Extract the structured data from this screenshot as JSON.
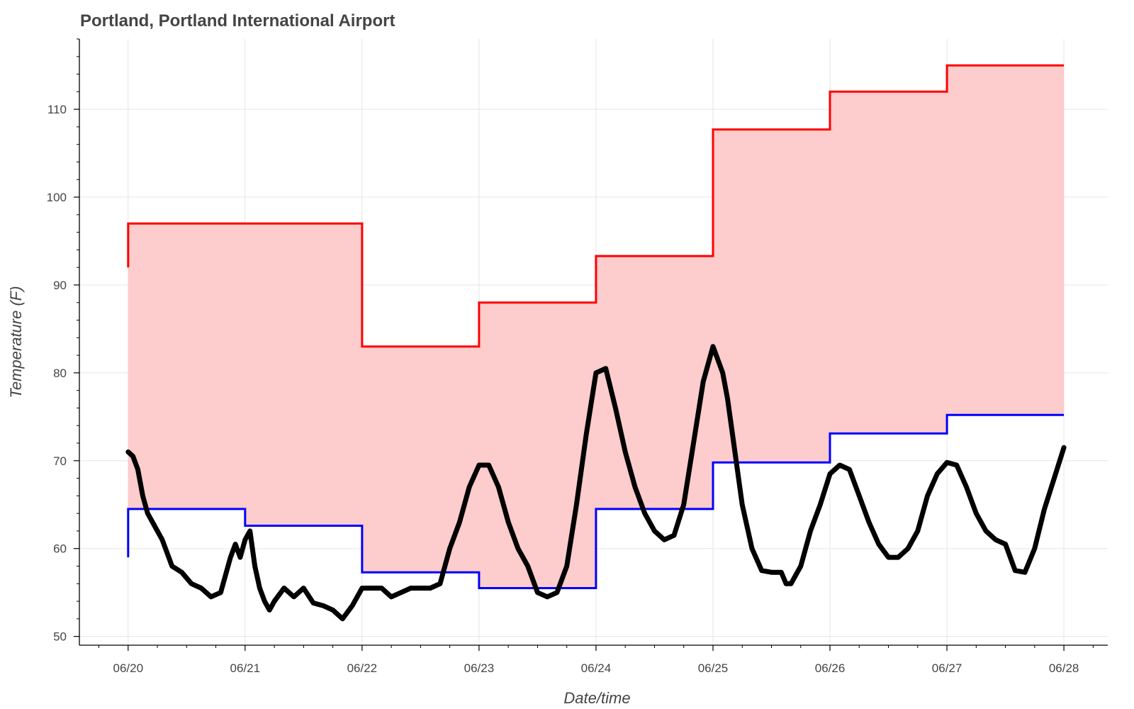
{
  "chart_data": {
    "type": "line",
    "title": "Portland, Portland International Airport",
    "xlabel": "Date/time",
    "ylabel": "Temperature (F)",
    "x_ticks": [
      "06/20",
      "06/21",
      "06/22",
      "06/23",
      "06/24",
      "06/25",
      "06/26",
      "06/27",
      "06/28"
    ],
    "y_ticks": [
      50,
      60,
      70,
      80,
      90,
      100,
      110
    ],
    "ylim": [
      49,
      118
    ],
    "xlim": [
      "06/19 14:00",
      "06/28 09:00"
    ],
    "grid": true,
    "colors": {
      "record_high": "#ff0000",
      "record_low": "#0000ff",
      "band_fill": "#fdcccc",
      "observed": "#000000",
      "grid": "#e5e5e5"
    },
    "series": [
      {
        "kind": "step",
        "color": "#ff0000",
        "points": [
          [
            "06/20 00:00",
            92
          ],
          [
            "06/20 00:00",
            97
          ],
          [
            "06/22 00:00",
            97
          ],
          [
            "06/22 00:00",
            83
          ],
          [
            "06/23 00:00",
            83
          ],
          [
            "06/23 00:00",
            88
          ],
          [
            "06/24 00:00",
            88
          ],
          [
            "06/24 00:00",
            93.3
          ],
          [
            "06/25 00:00",
            93.3
          ],
          [
            "06/25 00:00",
            107.7
          ],
          [
            "06/26 00:00",
            107.7
          ],
          [
            "06/26 00:00",
            112
          ],
          [
            "06/27 00:00",
            112
          ],
          [
            "06/27 00:00",
            115
          ],
          [
            "06/28 00:00",
            115
          ]
        ]
      },
      {
        "kind": "step",
        "color": "#0000ff",
        "points": [
          [
            "06/20 00:00",
            59
          ],
          [
            "06/20 00:00",
            64.5
          ],
          [
            "06/21 00:00",
            64.5
          ],
          [
            "06/21 00:00",
            62.6
          ],
          [
            "06/22 00:00",
            62.6
          ],
          [
            "06/22 00:00",
            57.3
          ],
          [
            "06/23 00:00",
            57.3
          ],
          [
            "06/23 00:00",
            55.5
          ],
          [
            "06/24 00:00",
            55.5
          ],
          [
            "06/24 00:00",
            64.5
          ],
          [
            "06/25 00:00",
            64.5
          ],
          [
            "06/25 00:00",
            69.8
          ],
          [
            "06/26 00:00",
            69.8
          ],
          [
            "06/26 00:00",
            73.1
          ],
          [
            "06/27 00:00",
            73.1
          ],
          [
            "06/27 00:00",
            75.2
          ],
          [
            "06/28 00:00",
            75.2
          ]
        ]
      },
      {
        "kind": "line",
        "color": "#000000",
        "points": [
          [
            "06/20 00:00",
            71
          ],
          [
            "06/20 01:00",
            70.5
          ],
          [
            "06/20 02:00",
            69
          ],
          [
            "06/20 03:00",
            66
          ],
          [
            "06/20 04:00",
            64
          ],
          [
            "06/20 05:00",
            63
          ],
          [
            "06/20 07:00",
            61
          ],
          [
            "06/20 09:00",
            58
          ],
          [
            "06/20 11:00",
            57.3
          ],
          [
            "06/20 13:00",
            56
          ],
          [
            "06/20 15:00",
            55.5
          ],
          [
            "06/20 17:00",
            54.5
          ],
          [
            "06/20 19:00",
            55
          ],
          [
            "06/20 21:00",
            59
          ],
          [
            "06/20 22:00",
            60.5
          ],
          [
            "06/20 23:00",
            59
          ],
          [
            "06/21 00:00",
            61
          ],
          [
            "06/21 01:00",
            62
          ],
          [
            "06/21 02:00",
            58
          ],
          [
            "06/21 03:00",
            55.5
          ],
          [
            "06/21 04:00",
            54
          ],
          [
            "06/21 05:00",
            53
          ],
          [
            "06/21 06:00",
            54
          ],
          [
            "06/21 08:00",
            55.5
          ],
          [
            "06/21 10:00",
            54.5
          ],
          [
            "06/21 12:00",
            55.5
          ],
          [
            "06/21 14:00",
            53.8
          ],
          [
            "06/21 16:00",
            53.5
          ],
          [
            "06/21 18:00",
            53
          ],
          [
            "06/21 20:00",
            52
          ],
          [
            "06/21 22:00",
            53.5
          ],
          [
            "06/22 00:00",
            55.5
          ],
          [
            "06/22 02:00",
            55.5
          ],
          [
            "06/22 04:00",
            55.5
          ],
          [
            "06/22 06:00",
            54.5
          ],
          [
            "06/22 08:00",
            55
          ],
          [
            "06/22 10:00",
            55.5
          ],
          [
            "06/22 12:00",
            55.5
          ],
          [
            "06/22 14:00",
            55.5
          ],
          [
            "06/22 16:00",
            56
          ],
          [
            "06/22 18:00",
            60
          ],
          [
            "06/22 20:00",
            63
          ],
          [
            "06/22 22:00",
            67
          ],
          [
            "06/23 00:00",
            69.5
          ],
          [
            "06/23 02:00",
            69.5
          ],
          [
            "06/23 04:00",
            67
          ],
          [
            "06/23 06:00",
            63
          ],
          [
            "06/23 08:00",
            60
          ],
          [
            "06/23 10:00",
            58
          ],
          [
            "06/23 12:00",
            55
          ],
          [
            "06/23 14:00",
            54.5
          ],
          [
            "06/23 16:00",
            55
          ],
          [
            "06/23 18:00",
            58
          ],
          [
            "06/23 20:00",
            65
          ],
          [
            "06/23 22:00",
            73
          ],
          [
            "06/24 00:00",
            80
          ],
          [
            "06/24 02:00",
            80.5
          ],
          [
            "06/24 04:00",
            76
          ],
          [
            "06/24 06:00",
            71
          ],
          [
            "06/24 08:00",
            67
          ],
          [
            "06/24 10:00",
            64
          ],
          [
            "06/24 12:00",
            62
          ],
          [
            "06/24 14:00",
            61
          ],
          [
            "06/24 16:00",
            61.5
          ],
          [
            "06/24 18:00",
            65
          ],
          [
            "06/24 20:00",
            72
          ],
          [
            "06/24 22:00",
            79
          ],
          [
            "06/25 00:00",
            83
          ],
          [
            "06/25 02:00",
            80
          ],
          [
            "06/25 03:00",
            77
          ],
          [
            "06/25 04:00",
            73
          ],
          [
            "06/25 06:00",
            65
          ],
          [
            "06/25 08:00",
            60
          ],
          [
            "06/25 10:00",
            57.5
          ],
          [
            "06/25 12:00",
            57.3
          ],
          [
            "06/25 14:00",
            57.3
          ],
          [
            "06/25 15:00",
            56
          ],
          [
            "06/25 16:00",
            56
          ],
          [
            "06/25 18:00",
            58
          ],
          [
            "06/25 20:00",
            62
          ],
          [
            "06/25 22:00",
            65
          ],
          [
            "06/26 00:00",
            68.5
          ],
          [
            "06/26 02:00",
            69.5
          ],
          [
            "06/26 04:00",
            69
          ],
          [
            "06/26 06:00",
            66
          ],
          [
            "06/26 08:00",
            63
          ],
          [
            "06/26 10:00",
            60.5
          ],
          [
            "06/26 12:00",
            59
          ],
          [
            "06/26 14:00",
            59
          ],
          [
            "06/26 16:00",
            60
          ],
          [
            "06/26 18:00",
            62
          ],
          [
            "06/26 20:00",
            66
          ],
          [
            "06/26 22:00",
            68.5
          ],
          [
            "06/27 00:00",
            69.8
          ],
          [
            "06/27 02:00",
            69.5
          ],
          [
            "06/27 04:00",
            67
          ],
          [
            "06/27 06:00",
            64
          ],
          [
            "06/27 08:00",
            62
          ],
          [
            "06/27 10:00",
            61
          ],
          [
            "06/27 12:00",
            60.5
          ],
          [
            "06/27 14:00",
            57.5
          ],
          [
            "06/27 16:00",
            57.3
          ],
          [
            "06/27 18:00",
            60
          ],
          [
            "06/27 20:00",
            64.5
          ],
          [
            "06/27 22:00",
            68
          ],
          [
            "06/28 00:00",
            71.5
          ]
        ]
      }
    ]
  }
}
